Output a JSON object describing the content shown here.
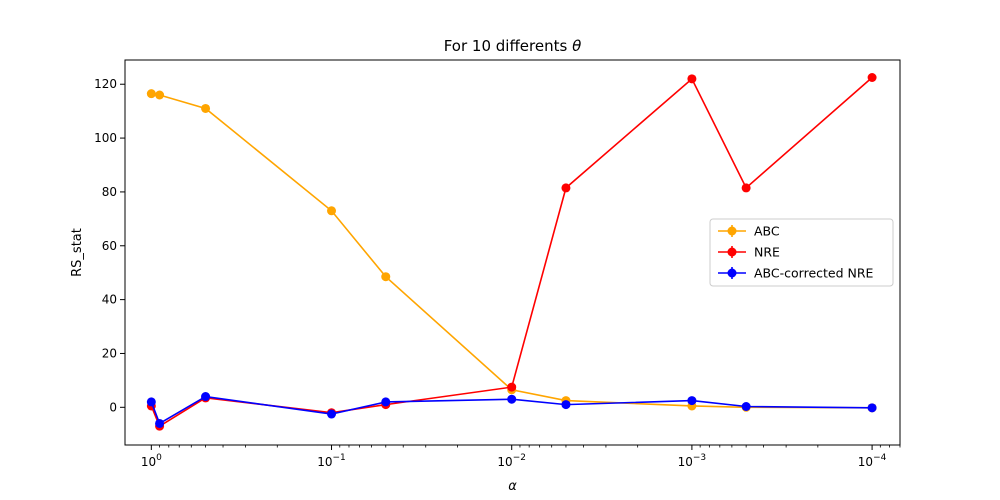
{
  "chart_data": {
    "type": "line",
    "title_prefix": "For 10 differents ",
    "title_symbol": "θ",
    "xlabel": "α",
    "ylabel": "RS_stat",
    "x_scale": "log",
    "x_reversed": true,
    "xlim": [
      1.4,
      7e-05
    ],
    "ylim": [
      -14,
      129
    ],
    "x_ticks": [
      {
        "value": 1,
        "base": "10",
        "exp": "0"
      },
      {
        "value": 0.1,
        "base": "10",
        "exp": "−1"
      },
      {
        "value": 0.01,
        "base": "10",
        "exp": "−2"
      },
      {
        "value": 0.001,
        "base": "10",
        "exp": "−3"
      },
      {
        "value": 0.0001,
        "base": "10",
        "exp": "−4"
      }
    ],
    "y_ticks": [
      0,
      20,
      40,
      60,
      80,
      100,
      120
    ],
    "x": [
      1,
      0.9,
      0.5,
      0.1,
      0.05,
      0.01,
      0.005,
      0.001,
      0.0005,
      0.0001
    ],
    "series": [
      {
        "name": "ABC",
        "color": "#ffa500",
        "values": [
          116.5,
          116,
          111,
          73,
          48.5,
          6.5,
          2.5,
          0.5,
          0,
          -0.2
        ]
      },
      {
        "name": "NRE",
        "color": "#ff0000",
        "values": [
          0.5,
          -7,
          3.5,
          -2,
          1,
          7.5,
          81.5,
          122,
          81.5,
          122.5
        ]
      },
      {
        "name": "ABC-corrected NRE",
        "color": "#0000ff",
        "values": [
          2,
          -6,
          4,
          -2.5,
          2,
          3,
          1,
          2.5,
          0.3,
          -0.2
        ]
      }
    ],
    "legend_position": "center-right",
    "grid": false
  }
}
